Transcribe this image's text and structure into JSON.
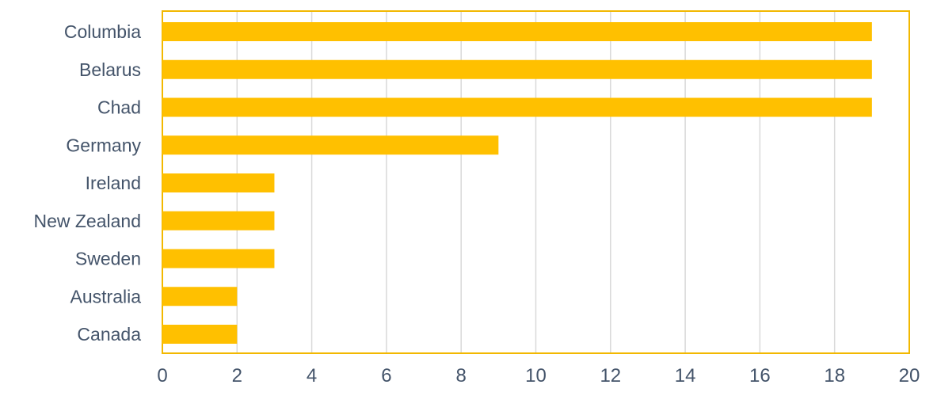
{
  "colors": {
    "bar": "#ffc000",
    "frame": "#f2b800",
    "grid": "#d9d9d9",
    "text": "#44546a"
  },
  "chart_data": {
    "type": "bar",
    "orientation": "horizontal",
    "categories": [
      "Columbia",
      "Belarus",
      "Chad",
      "Germany",
      "Ireland",
      "New Zealand",
      "Sweden",
      "Australia",
      "Canada"
    ],
    "values": [
      19,
      19,
      19,
      9,
      3,
      3,
      3,
      2,
      2
    ],
    "x_ticks": [
      0,
      2,
      4,
      6,
      8,
      10,
      12,
      14,
      16,
      18,
      20
    ],
    "xlim": [
      0,
      20
    ],
    "grid": true,
    "legend": false
  }
}
